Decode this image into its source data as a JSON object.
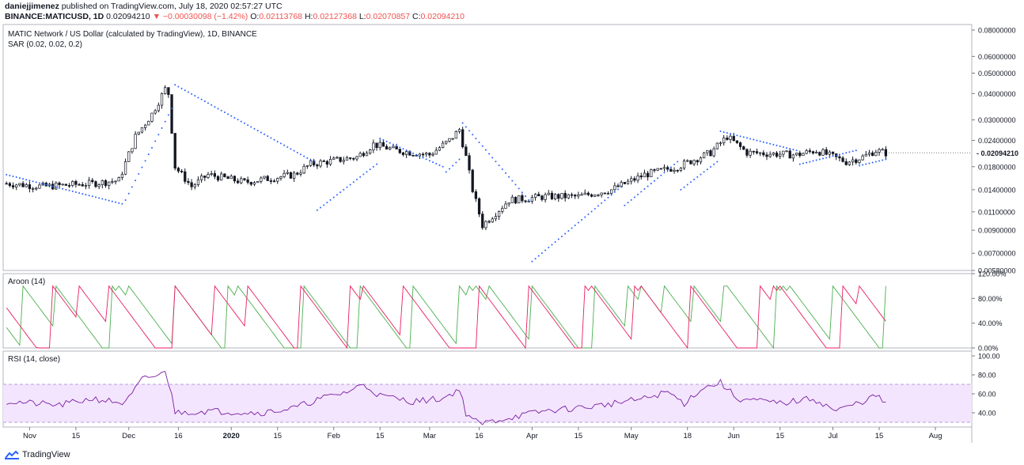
{
  "header": {
    "author": "daniejjimenez",
    "published": "published on TradingView.com, July 18, 2020 02:57:27 UTC",
    "symbol": "BINANCE:MATICUSD, 1D",
    "last": "0.02094210",
    "change": "▼ −0.00030098 (−1.42%)",
    "o_label": "O:",
    "o": "0.02113768",
    "h_label": "H:",
    "h": "0.02127368",
    "l_label": "L:",
    "l": "0.02070857",
    "c_label": "C:",
    "c": "0.02094210"
  },
  "footer": {
    "brand": "TradingView"
  },
  "colors": {
    "up": "#131722",
    "sar": "#2962ff",
    "aroon_up": "#4caf50",
    "aroon_down": "#e91e63",
    "rsi": "#7b1fa2",
    "rsi_band": "#f3e5fd",
    "accent_red": "#ef5350"
  },
  "chart_data": [
    {
      "type": "candlestick",
      "title": "MATIC Network / US Dollar (calculated by TradingView), 1D, BINANCE",
      "indicator": "SAR (0.02, 0.02, 0.2)",
      "y_scale": "log",
      "ylim": [
        0.0058,
        0.085
      ],
      "y_ticks": [
        "0.08000000",
        "0.06000000",
        "0.05000000",
        "0.04000000",
        "0.03000000",
        "0.02400000",
        "0.01800000",
        "0.01400000",
        "0.01100000",
        "0.00900000",
        "0.00700000",
        "0.00580000"
      ],
      "last_price_label": "0.02094210",
      "anchors": [
        [
          "2019-10-25",
          0.015
        ],
        [
          "2019-11-05",
          0.0145
        ],
        [
          "2019-11-20",
          0.015
        ],
        [
          "2019-11-28",
          0.0155
        ],
        [
          "2019-12-03",
          0.025
        ],
        [
          "2019-12-08",
          0.032
        ],
        [
          "2019-12-12",
          0.042
        ],
        [
          "2019-12-13",
          0.04
        ],
        [
          "2019-12-15",
          0.018
        ],
        [
          "2019-12-20",
          0.0145
        ],
        [
          "2019-12-25",
          0.0165
        ],
        [
          "2020-01-05",
          0.0152
        ],
        [
          "2020-01-20",
          0.0165
        ],
        [
          "2020-01-25",
          0.0185
        ],
        [
          "2020-02-08",
          0.02
        ],
        [
          "2020-02-13",
          0.023
        ],
        [
          "2020-02-20",
          0.0215
        ],
        [
          "2020-03-01",
          0.0205
        ],
        [
          "2020-03-07",
          0.024
        ],
        [
          "2020-03-10",
          0.027
        ],
        [
          "2020-03-12",
          0.02
        ],
        [
          "2020-03-14",
          0.014
        ],
        [
          "2020-03-17",
          0.0095
        ],
        [
          "2020-03-25",
          0.0125
        ],
        [
          "2020-04-05",
          0.013
        ],
        [
          "2020-04-15",
          0.013
        ],
        [
          "2020-04-25",
          0.014
        ],
        [
          "2020-05-05",
          0.0165
        ],
        [
          "2020-05-15",
          0.018
        ],
        [
          "2020-05-25",
          0.021
        ],
        [
          "2020-05-30",
          0.025
        ],
        [
          "2020-06-05",
          0.021
        ],
        [
          "2020-06-20",
          0.0205
        ],
        [
          "2020-06-26",
          0.0215
        ],
        [
          "2020-07-05",
          0.019
        ],
        [
          "2020-07-10",
          0.02
        ],
        [
          "2020-07-14",
          0.0215
        ],
        [
          "2020-07-17",
          0.0209
        ]
      ],
      "sar_runs": [
        [
          "2019-10-25",
          "2019-11-29",
          0.0165,
          0.012
        ],
        [
          "2019-11-30",
          "2019-12-14",
          0.0125,
          0.034
        ],
        [
          "2019-12-15",
          "2020-01-26",
          0.044,
          0.019
        ],
        [
          "2020-01-27",
          "2020-02-14",
          0.0112,
          0.0185
        ],
        [
          "2020-02-15",
          "2020-03-05",
          0.0245,
          0.018
        ],
        [
          "2020-03-06",
          "2020-03-10",
          0.017,
          0.0195
        ],
        [
          "2020-03-11",
          "2020-03-31",
          0.029,
          0.0125
        ],
        [
          "2020-04-01",
          "2020-04-28",
          0.0064,
          0.0145
        ],
        [
          "2020-04-29",
          "2020-05-15",
          0.0118,
          0.019
        ],
        [
          "2020-05-16",
          "2020-05-27",
          0.014,
          0.019
        ],
        [
          "2020-05-28",
          "2020-06-20",
          0.0265,
          0.0215
        ],
        [
          "2020-06-21",
          "2020-07-08",
          0.0185,
          0.0215
        ],
        [
          "2020-07-09",
          "2020-07-17",
          0.0182,
          0.0195
        ]
      ]
    },
    {
      "type": "line",
      "title": "Aroon (14)",
      "ylim": [
        0,
        120
      ],
      "y_ticks": [
        "120.00%",
        "80.00%",
        "40.00%",
        "0.00%"
      ],
      "series": [
        {
          "name": "Aroon Up",
          "values_step": "sawtooth"
        },
        {
          "name": "Aroon Down",
          "values_step": "sawtooth"
        }
      ]
    },
    {
      "type": "line",
      "title": "RSI (14, close)",
      "ylim": [
        25,
        105
      ],
      "y_ticks": [
        "100.00",
        "80.00",
        "60.00",
        "40.00"
      ],
      "band": [
        30,
        70
      ],
      "rsi_anchors": [
        [
          "2019-10-25",
          52
        ],
        [
          "2019-11-10",
          48
        ],
        [
          "2019-11-20",
          55
        ],
        [
          "2019-11-30",
          50
        ],
        [
          "2019-12-05",
          75
        ],
        [
          "2019-12-10",
          80
        ],
        [
          "2019-12-12",
          82
        ],
        [
          "2019-12-14",
          62
        ],
        [
          "2019-12-15",
          40
        ],
        [
          "2019-12-25",
          42
        ],
        [
          "2020-01-10",
          40
        ],
        [
          "2020-01-20",
          45
        ],
        [
          "2020-01-28",
          55
        ],
        [
          "2020-02-05",
          62
        ],
        [
          "2020-02-10",
          70
        ],
        [
          "2020-02-15",
          58
        ],
        [
          "2020-02-25",
          52
        ],
        [
          "2020-03-05",
          55
        ],
        [
          "2020-03-10",
          65
        ],
        [
          "2020-03-12",
          40
        ],
        [
          "2020-03-16",
          28
        ],
        [
          "2020-03-25",
          35
        ],
        [
          "2020-04-05",
          42
        ],
        [
          "2020-04-20",
          47
        ],
        [
          "2020-05-05",
          55
        ],
        [
          "2020-05-12",
          62
        ],
        [
          "2020-05-17",
          50
        ],
        [
          "2020-05-22",
          65
        ],
        [
          "2020-05-28",
          72
        ],
        [
          "2020-06-02",
          55
        ],
        [
          "2020-06-15",
          50
        ],
        [
          "2020-06-25",
          55
        ],
        [
          "2020-07-02",
          42
        ],
        [
          "2020-07-10",
          52
        ],
        [
          "2020-07-14",
          58
        ],
        [
          "2020-07-17",
          50
        ]
      ]
    }
  ],
  "x_axis": {
    "ticks": [
      "Nov",
      "15",
      "Dec",
      "16",
      "2020",
      "15",
      "Feb",
      "15",
      "Mar",
      "16",
      "Apr",
      "15",
      "May",
      "18",
      "Jun",
      "15",
      "Jul",
      "15",
      "Aug"
    ],
    "dates": [
      "2019-11-01",
      "2019-11-15",
      "2019-12-01",
      "2019-12-16",
      "2020-01-01",
      "2020-01-15",
      "2020-02-01",
      "2020-02-15",
      "2020-03-01",
      "2020-03-16",
      "2020-04-01",
      "2020-04-15",
      "2020-05-01",
      "2020-05-18",
      "2020-06-01",
      "2020-06-15",
      "2020-07-01",
      "2020-07-15",
      "2020-08-01"
    ]
  }
}
